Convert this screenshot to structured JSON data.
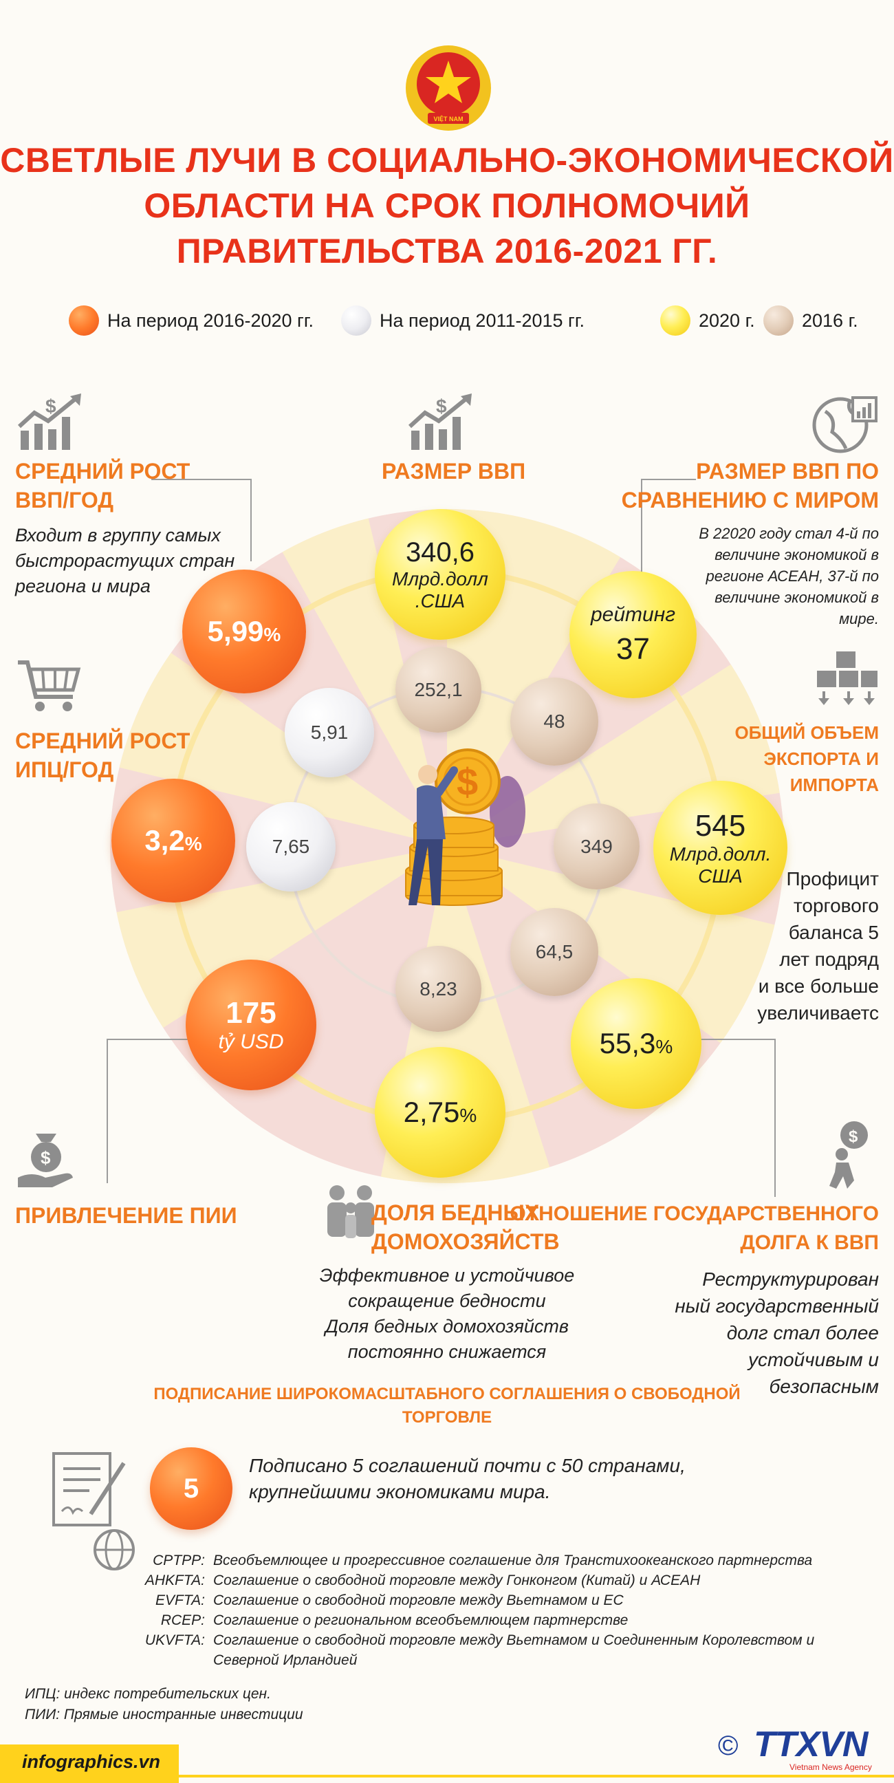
{
  "colors": {
    "accent_red": "#e8321a",
    "accent_orange": "#ef7a20",
    "orange_ball": "#ff7a2b",
    "yellow_ball": "#ffee55",
    "footer": "#ffd21c"
  },
  "title": {
    "line1": "СВЕТЛЫЕ ЛУЧИ В СОЦИАЛЬНО-ЭКОНОМИЧЕСКОЙ",
    "line2": "ОБЛАСТИ НА СРОК ПОЛНОМОЧИЙ",
    "line3": "ПРАВИТЕЛЬСТВА 2016-2021 ГГ."
  },
  "legend": [
    {
      "label": "На период 2016-2020 гг.",
      "color": "#ff7a2b"
    },
    {
      "label": "На период 2011-2015 гг.",
      "color": "#eeeef2"
    },
    {
      "label": "2020 г.",
      "color": "#ffee55"
    },
    {
      "label": "2016 г.",
      "color": "#e3cdb8"
    }
  ],
  "gdp_growth": {
    "title1": "СРЕДНИЙ РОСТ",
    "title2": "ВВП/ГОД",
    "desc1": "Входит в группу самых",
    "desc2": "быстрорастущих стран",
    "desc3": "региона и мира",
    "value": "5,99",
    "unit": "%",
    "prev": "5,91",
    "icon": "growth-chart-icon"
  },
  "gdp_size": {
    "title": "РАЗМЕР ВВП",
    "value": "340,6",
    "unit1": "Млрд.долл",
    "unit2": ".США",
    "prev": "252,1",
    "icon": "growth-chart-icon"
  },
  "gdp_world": {
    "title1": "РАЗМЕР ВВП ПО",
    "title2": "СРАВНЕНИЮ С МИРОМ",
    "desc1": "В 22020 году стал 4-й по",
    "desc2": "величине экономикой в",
    "desc3": "регионе АСЕАН, 37-й по",
    "desc4": "величине экономикой в",
    "desc5": "мире.",
    "label": "рейтинг",
    "value": "37",
    "prev": "48",
    "icon": "globe-chart-icon"
  },
  "cpi": {
    "title1": "СРЕДНИЙ РОСТ",
    "title2": "ИПЦ/ГОД",
    "value": "3,2",
    "unit": "%",
    "prev": "7,65",
    "icon": "shopping-cart-icon"
  },
  "trade": {
    "title1": "ОБЩИЙ ОБЪЕМ",
    "title2": "ЭКСПОРТА И",
    "title3": "ИМПОРТА",
    "value": "545",
    "unit1": "Млрд.долл.",
    "unit2": "США",
    "prev": "349",
    "desc1": "Профицит",
    "desc2": "торгового",
    "desc3": "баланса 5",
    "desc4": "лет подряд",
    "desc5": "и все больше",
    "desc6": "увеличиваетс",
    "icon": "boxes-icon"
  },
  "fdi": {
    "title": "ПРИВЛЕЧЕНИЕ ПИИ",
    "value": "175",
    "unit": "tỷ USD",
    "icon": "money-hand-icon"
  },
  "poverty": {
    "title1": "ДОЛЯ БЕДНЫХ",
    "title2": "ДОМОХОЗЯЙСТВ",
    "value": "2,75",
    "unit": "%",
    "prev": "8,23",
    "desc1": "Эффективное и устойчивое",
    "desc2": "сокращение бедности",
    "desc3": "Доля бедных домохозяйств",
    "desc4": "постоянно снижается",
    "icon": "family-icon"
  },
  "debt": {
    "title1": "ОТНОШЕНИЕ ГОСУДАРСТВЕННОГО",
    "title2": "ДОЛГА К ВВП",
    "value": "55,3",
    "unit": "%",
    "prev": "64,5",
    "desc1": "Реструктурирован",
    "desc2": "ный государственный",
    "desc3": "долг стал более",
    "desc4": "устойчивым и",
    "desc5": "безопасным",
    "icon": "debt-person-icon"
  },
  "fta": {
    "title1": "ПОДПИСАНИЕ ШИРОКОМАСШТАБНОГО СОГЛАШЕНИЯ О СВОБОДНОЙ",
    "title2": "ТОРГОВЛЕ",
    "value": "5",
    "desc1": "Подписано 5 соглашений почти с 50 странами,",
    "desc2": "крупнейшими экономиками мира.",
    "agreements": [
      {
        "abbr": "CPTPP:",
        "text": "Всеобъемлющее и прогрессивное соглашение для Транстихоокеанского партнерства"
      },
      {
        "abbr": "AHKFTA:",
        "text": "Соглашение о свободной торговле между Гонконгом (Китай) и АСЕАН"
      },
      {
        "abbr": "EVFTA:",
        "text": "Соглашение о свободной торговле между Вьетнамом и ЕС"
      },
      {
        "abbr": "RCEP:",
        "text": "Соглашение о региональном всеобъемлющем партнерстве"
      },
      {
        "abbr": "UKVFTA:",
        "text": "Соглашение о свободной торговле между Вьетнамом и Соединенным Королевством и"
      },
      {
        "abbr": "",
        "text": "Северной Ирландией"
      }
    ],
    "icon": "document-globe-icon"
  },
  "notes": {
    "note1": "ИПЦ: индекс потребительских цен.",
    "note2": "ПИИ: Прямые иностранные инвестиции"
  },
  "footer": {
    "site": "infographics.vn",
    "copyright": "©",
    "brand": "TTXVN",
    "brand_sub": "Vietnam News Agency"
  }
}
